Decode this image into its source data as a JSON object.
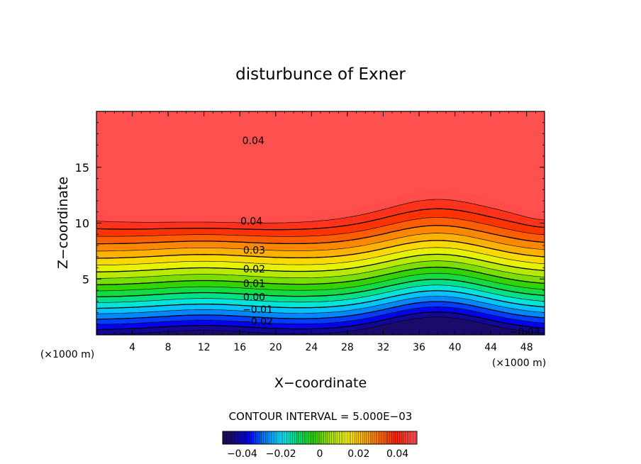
{
  "chart_data": {
    "type": "heatmap",
    "title": "disturbunce of Exner",
    "xlabel": "X−coordinate",
    "ylabel": "Z−coordinate",
    "x_unit_left": "(×1000 m)",
    "x_unit_right": "(×1000 m)",
    "xlim": [
      0,
      50
    ],
    "ylim": [
      0,
      20
    ],
    "x_ticks": [
      4,
      8,
      12,
      16,
      20,
      24,
      28,
      32,
      36,
      40,
      44,
      48
    ],
    "x_tick_labels": [
      "4",
      "8",
      "12",
      "16",
      "20",
      "24",
      "28",
      "32",
      "36",
      "40",
      "44",
      "48"
    ],
    "y_ticks": [
      5,
      10,
      15
    ],
    "y_tick_labels": [
      "5",
      "10",
      "15"
    ],
    "contour_interval_text": "CONTOUR INTERVAL = 5.000E−03",
    "value_range": [
      -0.045,
      0.048
    ],
    "contour_labels": [
      {
        "text": "0.04",
        "x": 17.5,
        "y": 17.4
      },
      {
        "text": "0.04",
        "x": 17.3,
        "y": 10.2
      },
      {
        "text": "0.03",
        "x": 17.6,
        "y": 7.6
      },
      {
        "text": "0.02",
        "x": 17.6,
        "y": 5.9
      },
      {
        "text": "0.01",
        "x": 17.6,
        "y": 4.6
      },
      {
        "text": "0.00",
        "x": 17.6,
        "y": 3.4
      },
      {
        "text": "−0.01",
        "x": 18.0,
        "y": 2.3
      },
      {
        "text": "−0.02",
        "x": 18.0,
        "y": 1.2
      },
      {
        "text": "−0.03",
        "x": 47.8,
        "y": 0.3
      }
    ],
    "colorbar": {
      "ticks": [
        -0.04,
        -0.02,
        0,
        0.02,
        0.04
      ],
      "tick_labels": [
        "−0.04",
        "−0.02",
        "0",
        "0.02",
        "0.04"
      ],
      "range": [
        -0.05,
        0.05
      ]
    },
    "colormap": [
      "#1a0a6b",
      "#0000ff",
      "#0080ff",
      "#00e5ff",
      "#00e070",
      "#2fd400",
      "#a8e600",
      "#f5f500",
      "#ffb000",
      "#ff6a00",
      "#ff2200",
      "#ff5050"
    ]
  }
}
